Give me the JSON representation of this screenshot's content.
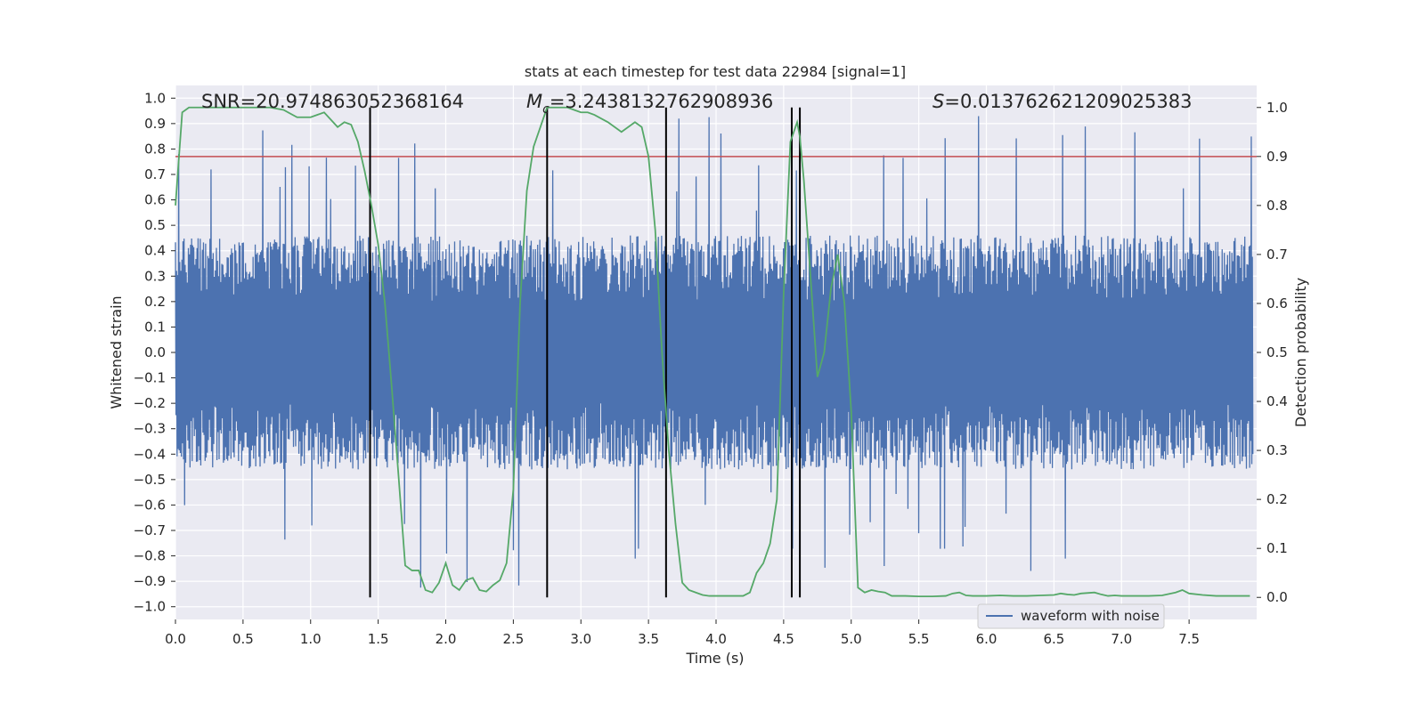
{
  "chart_data": {
    "type": "line",
    "title": "stats at each timestep for test data 22984 [signal=1]",
    "xlabel": "Time (s)",
    "ylabel_left": "Whitened strain",
    "ylabel_right": "Detection probability",
    "xlim": [
      0.0,
      8.0
    ],
    "ylim_left": [
      -1.05,
      1.05
    ],
    "ylim_right": [
      -0.045,
      1.045
    ],
    "x_ticks": [
      "0.0",
      "0.5",
      "1.0",
      "1.5",
      "2.0",
      "2.5",
      "3.0",
      "3.5",
      "4.0",
      "4.5",
      "5.0",
      "5.5",
      "6.0",
      "6.5",
      "7.0",
      "7.5"
    ],
    "x_tick_values": [
      0.0,
      0.5,
      1.0,
      1.5,
      2.0,
      2.5,
      3.0,
      3.5,
      4.0,
      4.5,
      5.0,
      5.5,
      6.0,
      6.5,
      7.0,
      7.5
    ],
    "y_left_ticks": [
      "1.0",
      "0.9",
      "0.8",
      "0.7",
      "0.6",
      "0.5",
      "0.4",
      "0.3",
      "0.2",
      "0.1",
      "0.0",
      "−0.1",
      "−0.2",
      "−0.3",
      "−0.4",
      "−0.5",
      "−0.6",
      "−0.7",
      "−0.8",
      "−0.9",
      "−1.0"
    ],
    "y_left_tick_values": [
      1.0,
      0.9,
      0.8,
      0.7,
      0.6,
      0.5,
      0.4,
      0.3,
      0.2,
      0.1,
      0.0,
      -0.1,
      -0.2,
      -0.3,
      -0.4,
      -0.5,
      -0.6,
      -0.7,
      -0.8,
      -0.9,
      -1.0
    ],
    "y_right_ticks": [
      "1.0",
      "0.9",
      "0.8",
      "0.7",
      "0.6",
      "0.5",
      "0.4",
      "0.3",
      "0.2",
      "0.1",
      "0.0"
    ],
    "y_right_tick_values": [
      1.0,
      0.9,
      0.8,
      0.7,
      0.6,
      0.5,
      0.4,
      0.3,
      0.2,
      0.1,
      0.0
    ],
    "threshold": 0.9,
    "threshold_color": "#c44e52",
    "annotations": {
      "snr": "SNR=20.974863052368164",
      "mc_symbol": "M",
      "mc_sub": "c",
      "mc_value": "=3.2438132762908936",
      "s_symbol": "S",
      "s_value": "=0.013762621209025383"
    },
    "vertical_lines": [
      1.44,
      2.75,
      3.63,
      4.56,
      4.62
    ],
    "series": [
      {
        "name": "waveform with noise",
        "axis": "left",
        "color": "#4c72b0",
        "description": "whitened strain noise, typical amplitude about ±0.45 with spikes up to ±0.95"
      },
      {
        "name": "detection probability",
        "axis": "right",
        "color": "#55a868",
        "x": [
          0.0,
          0.05,
          0.1,
          0.2,
          0.3,
          0.4,
          0.5,
          0.6,
          0.7,
          0.8,
          0.9,
          0.95,
          1.0,
          1.05,
          1.1,
          1.15,
          1.2,
          1.25,
          1.3,
          1.35,
          1.4,
          1.45,
          1.5,
          1.55,
          1.6,
          1.65,
          1.7,
          1.75,
          1.8,
          1.85,
          1.9,
          1.95,
          2.0,
          2.05,
          2.1,
          2.15,
          2.2,
          2.25,
          2.3,
          2.35,
          2.4,
          2.45,
          2.5,
          2.55,
          2.6,
          2.65,
          2.7,
          2.75,
          2.8,
          2.85,
          2.9,
          2.95,
          3.0,
          3.05,
          3.1,
          3.2,
          3.3,
          3.4,
          3.45,
          3.5,
          3.55,
          3.6,
          3.65,
          3.7,
          3.75,
          3.8,
          3.85,
          3.9,
          3.95,
          4.0,
          4.1,
          4.2,
          4.25,
          4.3,
          4.35,
          4.4,
          4.45,
          4.5,
          4.55,
          4.6,
          4.62,
          4.65,
          4.7,
          4.75,
          4.8,
          4.85,
          4.9,
          4.95,
          5.0,
          5.05,
          5.1,
          5.15,
          5.2,
          5.25,
          5.3,
          5.4,
          5.5,
          5.6,
          5.7,
          5.75,
          5.8,
          5.85,
          5.9,
          6.0,
          6.1,
          6.2,
          6.3,
          6.4,
          6.5,
          6.55,
          6.6,
          6.65,
          6.7,
          6.8,
          6.85,
          6.9,
          6.95,
          7.0,
          7.1,
          7.2,
          7.3,
          7.4,
          7.45,
          7.5,
          7.6,
          7.7,
          7.8,
          7.9,
          7.95
        ],
        "y": [
          0.8,
          0.99,
          1.0,
          1.0,
          1.0,
          1.0,
          1.0,
          1.0,
          1.0,
          0.995,
          0.98,
          0.98,
          0.98,
          0.985,
          0.99,
          0.975,
          0.96,
          0.97,
          0.965,
          0.93,
          0.87,
          0.8,
          0.72,
          0.6,
          0.43,
          0.25,
          0.065,
          0.055,
          0.055,
          0.015,
          0.01,
          0.03,
          0.07,
          0.025,
          0.015,
          0.035,
          0.04,
          0.015,
          0.012,
          0.025,
          0.035,
          0.07,
          0.22,
          0.6,
          0.83,
          0.92,
          0.96,
          1.0,
          1.0,
          1.0,
          1.0,
          0.995,
          0.99,
          0.99,
          0.985,
          0.97,
          0.95,
          0.97,
          0.96,
          0.9,
          0.75,
          0.5,
          0.3,
          0.15,
          0.03,
          0.015,
          0.01,
          0.005,
          0.003,
          0.003,
          0.003,
          0.003,
          0.01,
          0.05,
          0.07,
          0.11,
          0.2,
          0.62,
          0.93,
          0.97,
          0.94,
          0.85,
          0.65,
          0.45,
          0.5,
          0.63,
          0.7,
          0.6,
          0.38,
          0.02,
          0.01,
          0.015,
          0.012,
          0.01,
          0.003,
          0.003,
          0.002,
          0.002,
          0.003,
          0.008,
          0.01,
          0.004,
          0.003,
          0.003,
          0.004,
          0.003,
          0.003,
          0.004,
          0.005,
          0.008,
          0.006,
          0.005,
          0.008,
          0.01,
          0.006,
          0.003,
          0.004,
          0.003,
          0.003,
          0.003,
          0.004,
          0.01,
          0.015,
          0.008,
          0.005,
          0.003,
          0.003,
          0.003,
          0.003
        ]
      }
    ],
    "legend": {
      "label": "waveform with noise",
      "location": "lower right"
    }
  }
}
